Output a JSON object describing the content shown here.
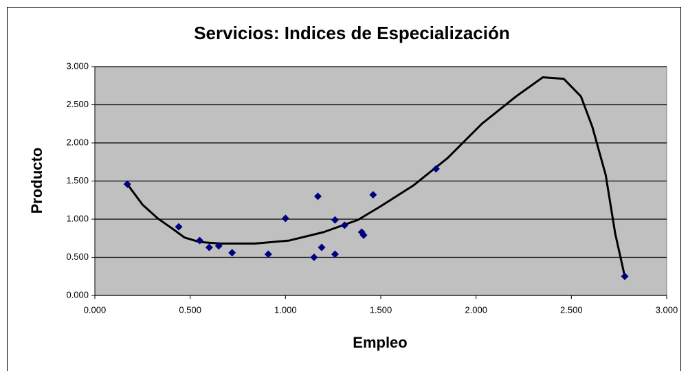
{
  "chart_data": {
    "type": "scatter",
    "title": "Servicios: Indices de Especialización",
    "x_label": "Empleo",
    "y_label": "Producto",
    "color": "#000080",
    "trend_color": "#000000",
    "plot_background": "#c0c0c0",
    "grid": true,
    "xlim": [
      0,
      3
    ],
    "ylim": [
      0,
      3
    ],
    "xticks": [
      {
        "value": 0,
        "label": "0.000"
      },
      {
        "value": 0.5,
        "label": "0.500"
      },
      {
        "value": 1,
        "label": "1.000"
      },
      {
        "value": 1.5,
        "label": "1.500"
      },
      {
        "value": 2,
        "label": "2.000"
      },
      {
        "value": 2.5,
        "label": "2.500"
      },
      {
        "value": 3,
        "label": "3.000"
      }
    ],
    "yticks": [
      {
        "value": 0,
        "label": "0.000"
      },
      {
        "value": 0.5,
        "label": "0.500"
      },
      {
        "value": 1,
        "label": "1.000"
      },
      {
        "value": 1.5,
        "label": "1.500"
      },
      {
        "value": 2,
        "label": "2.000"
      },
      {
        "value": 2.5,
        "label": "2.500"
      },
      {
        "value": 3,
        "label": "3.000"
      }
    ],
    "x": [
      0.17,
      0.44,
      0.55,
      0.6,
      0.65,
      0.72,
      0.91,
      1.0,
      1.15,
      1.17,
      1.19,
      1.26,
      1.26,
      1.31,
      1.4,
      1.41,
      1.46,
      1.79,
      2.78
    ],
    "y": [
      1.46,
      0.9,
      0.72,
      0.63,
      0.65,
      0.56,
      0.54,
      1.01,
      0.5,
      1.3,
      0.63,
      0.99,
      0.54,
      0.92,
      0.83,
      0.79,
      1.32,
      1.66,
      0.25
    ],
    "trendline": {
      "x": [
        0.17,
        0.25,
        0.33,
        0.41,
        0.47,
        0.55,
        0.66,
        0.84,
        1.02,
        1.2,
        1.38,
        1.5,
        1.67,
        1.85,
        2.03,
        2.21,
        2.35,
        2.46,
        2.55,
        2.61,
        2.68,
        2.73,
        2.78
      ],
      "y": [
        1.46,
        1.19,
        1.01,
        0.87,
        0.76,
        0.7,
        0.68,
        0.68,
        0.72,
        0.83,
        0.99,
        1.17,
        1.44,
        1.8,
        2.25,
        2.61,
        2.86,
        2.84,
        2.61,
        2.21,
        1.58,
        0.81,
        0.25
      ]
    }
  }
}
